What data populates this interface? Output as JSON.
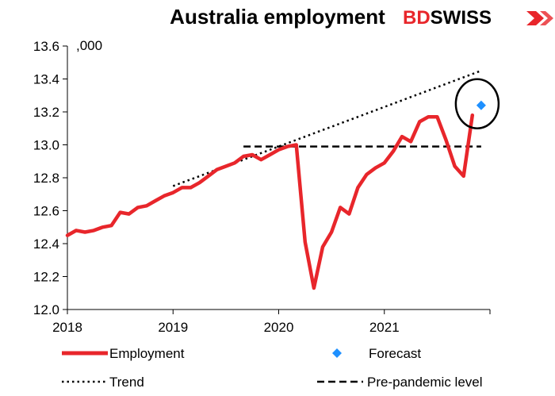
{
  "colors": {
    "employment": "#e8262b",
    "forecast": "#1e90ff",
    "trend": "#000000",
    "pre_pandemic": "#000000",
    "logo_bd": "#e8262b",
    "logo_swiss": "#000000"
  },
  "logo": {
    "bd": "BD",
    "swiss": "SWISS",
    "mark": "chevron-logo-icon"
  },
  "chart_data": {
    "type": "line",
    "title": "Australia employment",
    "unit_label": ",000",
    "xlabel": "",
    "ylabel": "",
    "ylim": [
      12.0,
      13.6
    ],
    "yticks": [
      12.0,
      12.2,
      12.4,
      12.6,
      12.8,
      13.0,
      13.2,
      13.4,
      13.6
    ],
    "ytick_labels": [
      "12.0",
      "12.2",
      "12.4",
      "12.6",
      "12.8",
      "13.0",
      "13.2",
      "13.4",
      "13.6"
    ],
    "xlim": [
      "2018-01",
      "2022-01"
    ],
    "xticks": [
      "2018-01",
      "2019-01",
      "2020-01",
      "2021-01",
      "2022-01"
    ],
    "xtick_labels": [
      "2018",
      "2019",
      "2020",
      "2021",
      ""
    ],
    "grid": false,
    "series": [
      {
        "name": "Employment",
        "style": "solid",
        "x": [
          "2018-01",
          "2018-02",
          "2018-03",
          "2018-04",
          "2018-05",
          "2018-06",
          "2018-07",
          "2018-08",
          "2018-09",
          "2018-10",
          "2018-11",
          "2018-12",
          "2019-01",
          "2019-02",
          "2019-03",
          "2019-04",
          "2019-05",
          "2019-06",
          "2019-07",
          "2019-08",
          "2019-09",
          "2019-10",
          "2019-11",
          "2019-12",
          "2020-01",
          "2020-02",
          "2020-03",
          "2020-04",
          "2020-05",
          "2020-06",
          "2020-07",
          "2020-08",
          "2020-09",
          "2020-10",
          "2020-11",
          "2020-12",
          "2021-01",
          "2021-02",
          "2021-03",
          "2021-04",
          "2021-05",
          "2021-06",
          "2021-07",
          "2021-08",
          "2021-09",
          "2021-10",
          "2021-11"
        ],
        "values": [
          12.45,
          12.48,
          12.47,
          12.48,
          12.5,
          12.51,
          12.59,
          12.58,
          12.62,
          12.63,
          12.66,
          12.69,
          12.71,
          12.74,
          12.74,
          12.77,
          12.81,
          12.85,
          12.87,
          12.89,
          12.93,
          12.94,
          12.91,
          12.94,
          12.97,
          12.99,
          13.0,
          12.41,
          12.13,
          12.38,
          12.47,
          12.62,
          12.58,
          12.74,
          12.82,
          12.86,
          12.89,
          12.96,
          13.05,
          13.02,
          13.14,
          13.17,
          13.17,
          13.03,
          12.87,
          12.81,
          13.18
        ]
      },
      {
        "name": "Trend",
        "style": "dotted",
        "x": [
          "2019-01",
          "2021-12"
        ],
        "values": [
          12.75,
          13.45
        ]
      },
      {
        "name": "Pre-pandemic level",
        "style": "dashed",
        "x": [
          "2019-09",
          "2021-12"
        ],
        "values": [
          12.99,
          12.99
        ]
      },
      {
        "name": "Forecast",
        "style": "marker",
        "x": [
          "2021-12"
        ],
        "values": [
          13.24
        ]
      }
    ],
    "annotations": [
      {
        "type": "circle",
        "around": "Forecast"
      }
    ],
    "legend": {
      "placement": "bottom",
      "entries": [
        "Employment",
        "Forecast",
        "Trend",
        "Pre-pandemic level"
      ]
    }
  }
}
